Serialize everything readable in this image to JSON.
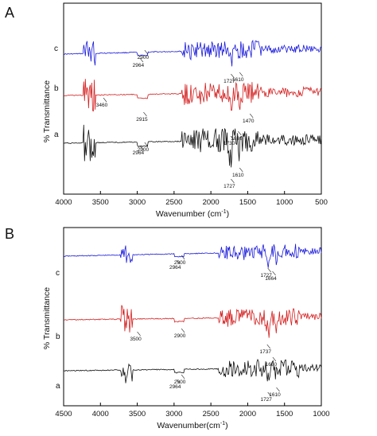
{
  "chart_data": [
    {
      "type": "line",
      "panel_label": "A",
      "xlabel_main": "Wavenumber (cm",
      "xlabel_sup": "-1",
      "xlabel_end": ")",
      "ylabel": "% Transmittance",
      "xlim": [
        4000,
        500
      ],
      "xticks": [
        4000,
        3500,
        3000,
        2500,
        2000,
        1500,
        1000,
        500
      ],
      "grid": false,
      "series": [
        {
          "name": "c",
          "color": "#1a1adb",
          "annotations": [
            {
              "text": "2964",
              "x": 2964
            },
            {
              "text": "2900",
              "x": 2900
            },
            {
              "text": "1727",
              "x": 1727
            },
            {
              "text": "1610",
              "x": 1610
            }
          ]
        },
        {
          "name": "b",
          "color": "#d41f1f",
          "annotations": [
            {
              "text": "3460",
              "x": 3460
            },
            {
              "text": "2915",
              "x": 2915
            },
            {
              "text": "1730",
              "x": 1730
            },
            {
              "text": "1630",
              "x": 1630
            },
            {
              "text": "1470",
              "x": 1470
            }
          ]
        },
        {
          "name": "a",
          "color": "#111111",
          "annotations": [
            {
              "text": "2964",
              "x": 2964
            },
            {
              "text": "2900",
              "x": 2900
            },
            {
              "text": "1610",
              "x": 1610
            },
            {
              "text": "1727",
              "x": 1727
            }
          ]
        }
      ]
    },
    {
      "type": "line",
      "panel_label": "B",
      "xlabel_main": "Wavenumber(cm",
      "xlabel_sup": "-1",
      "xlabel_end": ")",
      "ylabel": "% Transmittance",
      "xlim": [
        4500,
        1000
      ],
      "xticks": [
        4500,
        4000,
        3500,
        3000,
        2500,
        2000,
        1500,
        1000
      ],
      "grid": false,
      "series": [
        {
          "name": "c",
          "color": "#1a1adb",
          "annotations": [
            {
              "text": "2964",
              "x": 2964
            },
            {
              "text": "2900",
              "x": 2900
            },
            {
              "text": "1727",
              "x": 1727
            },
            {
              "text": "1664",
              "x": 1664
            }
          ]
        },
        {
          "name": "b",
          "color": "#d41f1f",
          "annotations": [
            {
              "text": "3500",
              "x": 3500
            },
            {
              "text": "2900",
              "x": 2900
            },
            {
              "text": "1737",
              "x": 1737
            },
            {
              "text": "1660",
              "x": 1660
            }
          ]
        },
        {
          "name": "a",
          "color": "#111111",
          "annotations": [
            {
              "text": "2964",
              "x": 2964
            },
            {
              "text": "2900",
              "x": 2900
            },
            {
              "text": "1610",
              "x": 1610
            },
            {
              "text": "1727",
              "x": 1727
            }
          ]
        }
      ]
    }
  ]
}
